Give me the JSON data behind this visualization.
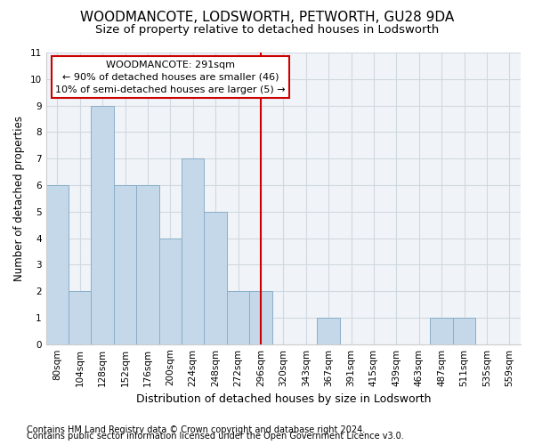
{
  "title": "WOODMANCOTE, LODSWORTH, PETWORTH, GU28 9DA",
  "subtitle": "Size of property relative to detached houses in Lodsworth",
  "xlabel": "Distribution of detached houses by size in Lodsworth",
  "ylabel": "Number of detached properties",
  "footnote1": "Contains HM Land Registry data © Crown copyright and database right 2024.",
  "footnote2": "Contains public sector information licensed under the Open Government Licence v3.0.",
  "categories": [
    "80sqm",
    "104sqm",
    "128sqm",
    "152sqm",
    "176sqm",
    "200sqm",
    "224sqm",
    "248sqm",
    "272sqm",
    "296sqm",
    "320sqm",
    "343sqm",
    "367sqm",
    "391sqm",
    "415sqm",
    "439sqm",
    "463sqm",
    "487sqm",
    "511sqm",
    "535sqm",
    "559sqm"
  ],
  "values": [
    6,
    2,
    9,
    6,
    6,
    4,
    7,
    5,
    2,
    2,
    0,
    0,
    1,
    0,
    0,
    0,
    0,
    1,
    1,
    0,
    0
  ],
  "bar_color": "#c5d8ea",
  "bar_edge_color": "#8aaec8",
  "vline_index": 9,
  "vline_color": "#cc0000",
  "annotation_title": "WOODMANCOTE: 291sqm",
  "annotation_line1": "← 90% of detached houses are smaller (46)",
  "annotation_line2": "10% of semi-detached houses are larger (5) →",
  "annotation_box_facecolor": "#ffffff",
  "annotation_box_edgecolor": "#cc0000",
  "ylim": [
    0,
    11
  ],
  "yticks": [
    0,
    1,
    2,
    3,
    4,
    5,
    6,
    7,
    8,
    9,
    10,
    11
  ],
  "plot_bg": "#f0f4f8",
  "fig_bg": "#ffffff",
  "grid_color": "#d0d8e0",
  "title_fontsize": 11,
  "subtitle_fontsize": 9.5,
  "ylabel_fontsize": 8.5,
  "xlabel_fontsize": 9,
  "tick_fontsize": 7.5,
  "annot_fontsize": 8,
  "footnote_fontsize": 7
}
